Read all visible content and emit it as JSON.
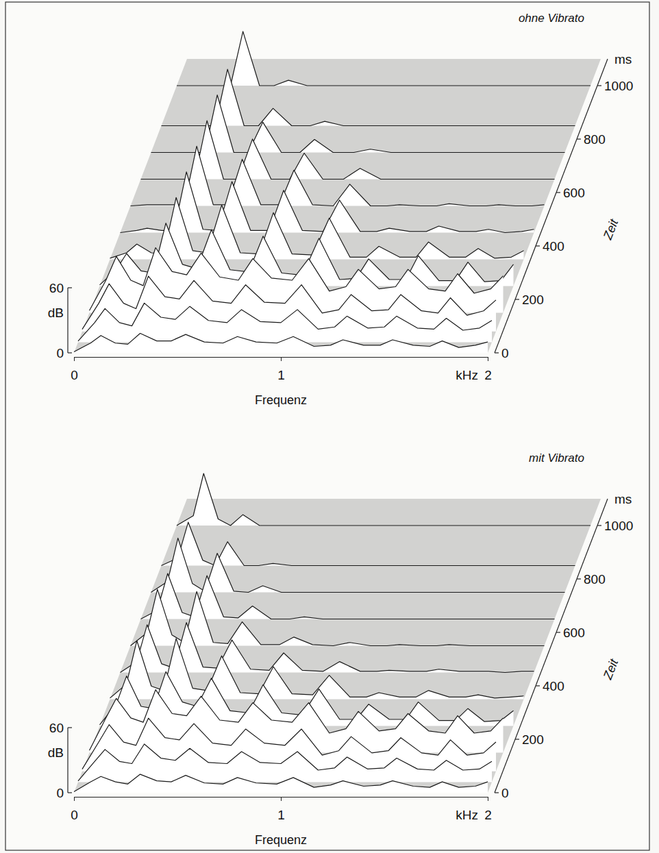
{
  "chart_data": [
    {
      "type": "waterfall",
      "title": "ohne Vibrato",
      "x_label": "Frequenz",
      "x_unit": "kHz",
      "y_label": "dB",
      "z_label": "Zeit",
      "z_unit": "ms",
      "xlim": [
        0,
        2
      ],
      "xticks": [
        0,
        1,
        2
      ],
      "ylim": [
        0,
        60
      ],
      "yticks": [
        0,
        60
      ],
      "zlim": [
        0,
        1100
      ],
      "zticks": [
        0,
        200,
        400,
        600,
        800,
        1000
      ],
      "color": "#1a1a1a",
      "x": [
        0,
        0.08,
        0.13,
        0.2,
        0.26,
        0.32,
        0.4,
        0.47,
        0.54,
        0.63,
        0.72,
        0.79,
        0.88,
        0.98,
        1.06,
        1.16,
        1.24,
        1.3,
        1.4,
        1.48,
        1.54,
        1.64,
        1.72,
        1.78,
        1.86,
        1.94,
        2.0
      ],
      "z": [
        0,
        40,
        80,
        150,
        250,
        350,
        450,
        550,
        650,
        750,
        850,
        1000
      ],
      "values": [
        [
          1,
          9,
          16,
          9,
          8,
          18,
          11,
          11,
          17,
          10,
          9,
          15,
          10,
          9,
          15,
          6,
          7,
          12,
          7,
          7,
          12,
          7,
          6,
          11,
          5,
          7,
          10
        ],
        [
          1,
          18,
          31,
          18,
          15,
          36,
          23,
          21,
          33,
          20,
          18,
          30,
          19,
          18,
          30,
          12,
          14,
          24,
          13,
          14,
          24,
          13,
          12,
          22,
          11,
          13,
          20
        ],
        [
          2,
          26,
          44,
          26,
          21,
          51,
          32,
          30,
          47,
          28,
          26,
          43,
          27,
          26,
          43,
          17,
          20,
          34,
          19,
          20,
          34,
          19,
          17,
          31,
          15,
          19,
          29
        ],
        [
          2,
          30,
          52,
          30,
          25,
          60,
          38,
          35,
          55,
          33,
          30,
          50,
          32,
          30,
          50,
          20,
          24,
          40,
          22,
          24,
          40,
          22,
          20,
          36,
          18,
          22,
          34
        ],
        [
          1,
          15,
          30,
          14,
          12,
          58,
          20,
          16,
          52,
          15,
          13,
          46,
          12,
          10,
          44,
          6,
          7,
          25,
          6,
          6,
          28,
          5,
          5,
          22,
          4,
          5,
          20
        ],
        [
          1,
          6,
          14,
          6,
          5,
          57,
          8,
          6,
          50,
          6,
          5,
          43,
          5,
          4,
          38,
          2,
          2,
          12,
          2,
          2,
          16,
          2,
          2,
          10,
          1,
          2,
          8
        ],
        [
          0,
          2,
          4,
          2,
          2,
          56,
          3,
          2,
          47,
          2,
          2,
          39,
          2,
          1,
          30,
          1,
          1,
          4,
          1,
          1,
          6,
          1,
          1,
          3,
          0,
          1,
          3
        ],
        [
          0,
          1,
          1,
          1,
          1,
          55,
          1,
          1,
          43,
          1,
          1,
          33,
          1,
          0,
          20,
          0,
          0,
          1,
          0,
          0,
          2,
          0,
          0,
          1,
          0,
          0,
          1
        ],
        [
          0,
          0,
          0,
          0,
          0,
          54,
          0,
          0,
          37,
          0,
          0,
          24,
          0,
          0,
          10,
          0,
          0,
          0,
          0,
          0,
          0,
          0,
          0,
          0,
          0,
          0,
          0
        ],
        [
          0,
          0,
          0,
          0,
          0,
          53,
          0,
          0,
          28,
          0,
          0,
          12,
          0,
          0,
          3,
          0,
          0,
          0,
          0,
          0,
          0,
          0,
          0,
          0,
          0,
          0,
          0
        ],
        [
          0,
          0,
          0,
          0,
          0,
          52,
          0,
          0,
          16,
          0,
          0,
          4,
          0,
          0,
          0,
          0,
          0,
          0,
          0,
          0,
          0,
          0,
          0,
          0,
          0,
          0,
          0
        ],
        [
          0,
          0,
          0,
          0,
          0,
          50,
          0,
          0,
          5,
          0,
          0,
          0,
          0,
          0,
          0,
          0,
          0,
          0,
          0,
          0,
          0,
          0,
          0,
          0,
          0,
          0,
          0
        ]
      ]
    },
    {
      "type": "waterfall",
      "title": "mit Vibrato",
      "x_label": "Frequenz",
      "x_unit": "kHz",
      "y_label": "dB",
      "z_label": "Zeit",
      "z_unit": "ms",
      "xlim": [
        0,
        2
      ],
      "xticks": [
        0,
        1,
        2
      ],
      "ylim": [
        0,
        60
      ],
      "yticks": [
        0,
        60
      ],
      "zlim": [
        0,
        1100
      ],
      "zticks": [
        0,
        200,
        400,
        600,
        800,
        1000
      ],
      "color": "#1a1a1a",
      "x": [
        0,
        0.08,
        0.13,
        0.2,
        0.26,
        0.32,
        0.4,
        0.47,
        0.54,
        0.63,
        0.72,
        0.79,
        0.88,
        0.98,
        1.06,
        1.16,
        1.24,
        1.3,
        1.4,
        1.48,
        1.54,
        1.64,
        1.72,
        1.78,
        1.86,
        1.94,
        2.0
      ],
      "z": [
        0,
        40,
        80,
        150,
        250,
        350,
        450,
        550,
        650,
        750,
        850,
        1000
      ],
      "values": [
        [
          1,
          10,
          15,
          10,
          8,
          17,
          11,
          10,
          16,
          9,
          8,
          14,
          9,
          8,
          14,
          5,
          7,
          11,
          6,
          7,
          11,
          6,
          5,
          10,
          5,
          6,
          10
        ],
        [
          1,
          19,
          30,
          19,
          17,
          35,
          22,
          20,
          31,
          18,
          17,
          28,
          18,
          17,
          28,
          11,
          13,
          23,
          12,
          13,
          22,
          12,
          11,
          20,
          11,
          12,
          19
        ],
        [
          2,
          27,
          43,
          27,
          24,
          49,
          31,
          29,
          44,
          26,
          24,
          39,
          26,
          24,
          39,
          15,
          19,
          32,
          17,
          19,
          31,
          17,
          15,
          29,
          15,
          17,
          27
        ],
        [
          2,
          32,
          50,
          32,
          28,
          58,
          36,
          34,
          52,
          30,
          28,
          46,
          30,
          28,
          46,
          18,
          22,
          38,
          20,
          22,
          36,
          20,
          18,
          34,
          18,
          20,
          32
        ],
        [
          1,
          20,
          46,
          18,
          16,
          50,
          22,
          18,
          44,
          14,
          12,
          38,
          12,
          10,
          34,
          6,
          6,
          20,
          6,
          6,
          22,
          5,
          5,
          16,
          4,
          5,
          14
        ],
        [
          1,
          14,
          54,
          12,
          8,
          56,
          10,
          8,
          40,
          6,
          5,
          30,
          5,
          4,
          22,
          2,
          2,
          6,
          2,
          2,
          8,
          2,
          2,
          4,
          1,
          2,
          3
        ],
        [
          0,
          10,
          44,
          8,
          4,
          46,
          5,
          4,
          30,
          3,
          2,
          18,
          2,
          1,
          10,
          1,
          1,
          2,
          1,
          1,
          3,
          1,
          1,
          1,
          0,
          1,
          1
        ],
        [
          0,
          12,
          52,
          10,
          3,
          50,
          3,
          2,
          22,
          1,
          1,
          8,
          1,
          0,
          3,
          0,
          0,
          1,
          0,
          0,
          1,
          0,
          0,
          0,
          0,
          0,
          0
        ],
        [
          0,
          8,
          42,
          6,
          2,
          40,
          2,
          1,
          12,
          0,
          0,
          2,
          0,
          0,
          0,
          0,
          0,
          0,
          0,
          0,
          0,
          0,
          0,
          0,
          0,
          0,
          0
        ],
        [
          0,
          10,
          50,
          8,
          1,
          36,
          1,
          0,
          6,
          0,
          0,
          0,
          0,
          0,
          0,
          0,
          0,
          0,
          0,
          0,
          0,
          0,
          0,
          0,
          0,
          0,
          0
        ],
        [
          0,
          7,
          40,
          5,
          0,
          22,
          0,
          0,
          2,
          0,
          0,
          0,
          0,
          0,
          0,
          0,
          0,
          0,
          0,
          0,
          0,
          0,
          0,
          0,
          0,
          0,
          0
        ],
        [
          0,
          9,
          48,
          6,
          0,
          10,
          0,
          0,
          0,
          0,
          0,
          0,
          0,
          0,
          0,
          0,
          0,
          0,
          0,
          0,
          0,
          0,
          0,
          0,
          0,
          0,
          0
        ]
      ]
    }
  ]
}
